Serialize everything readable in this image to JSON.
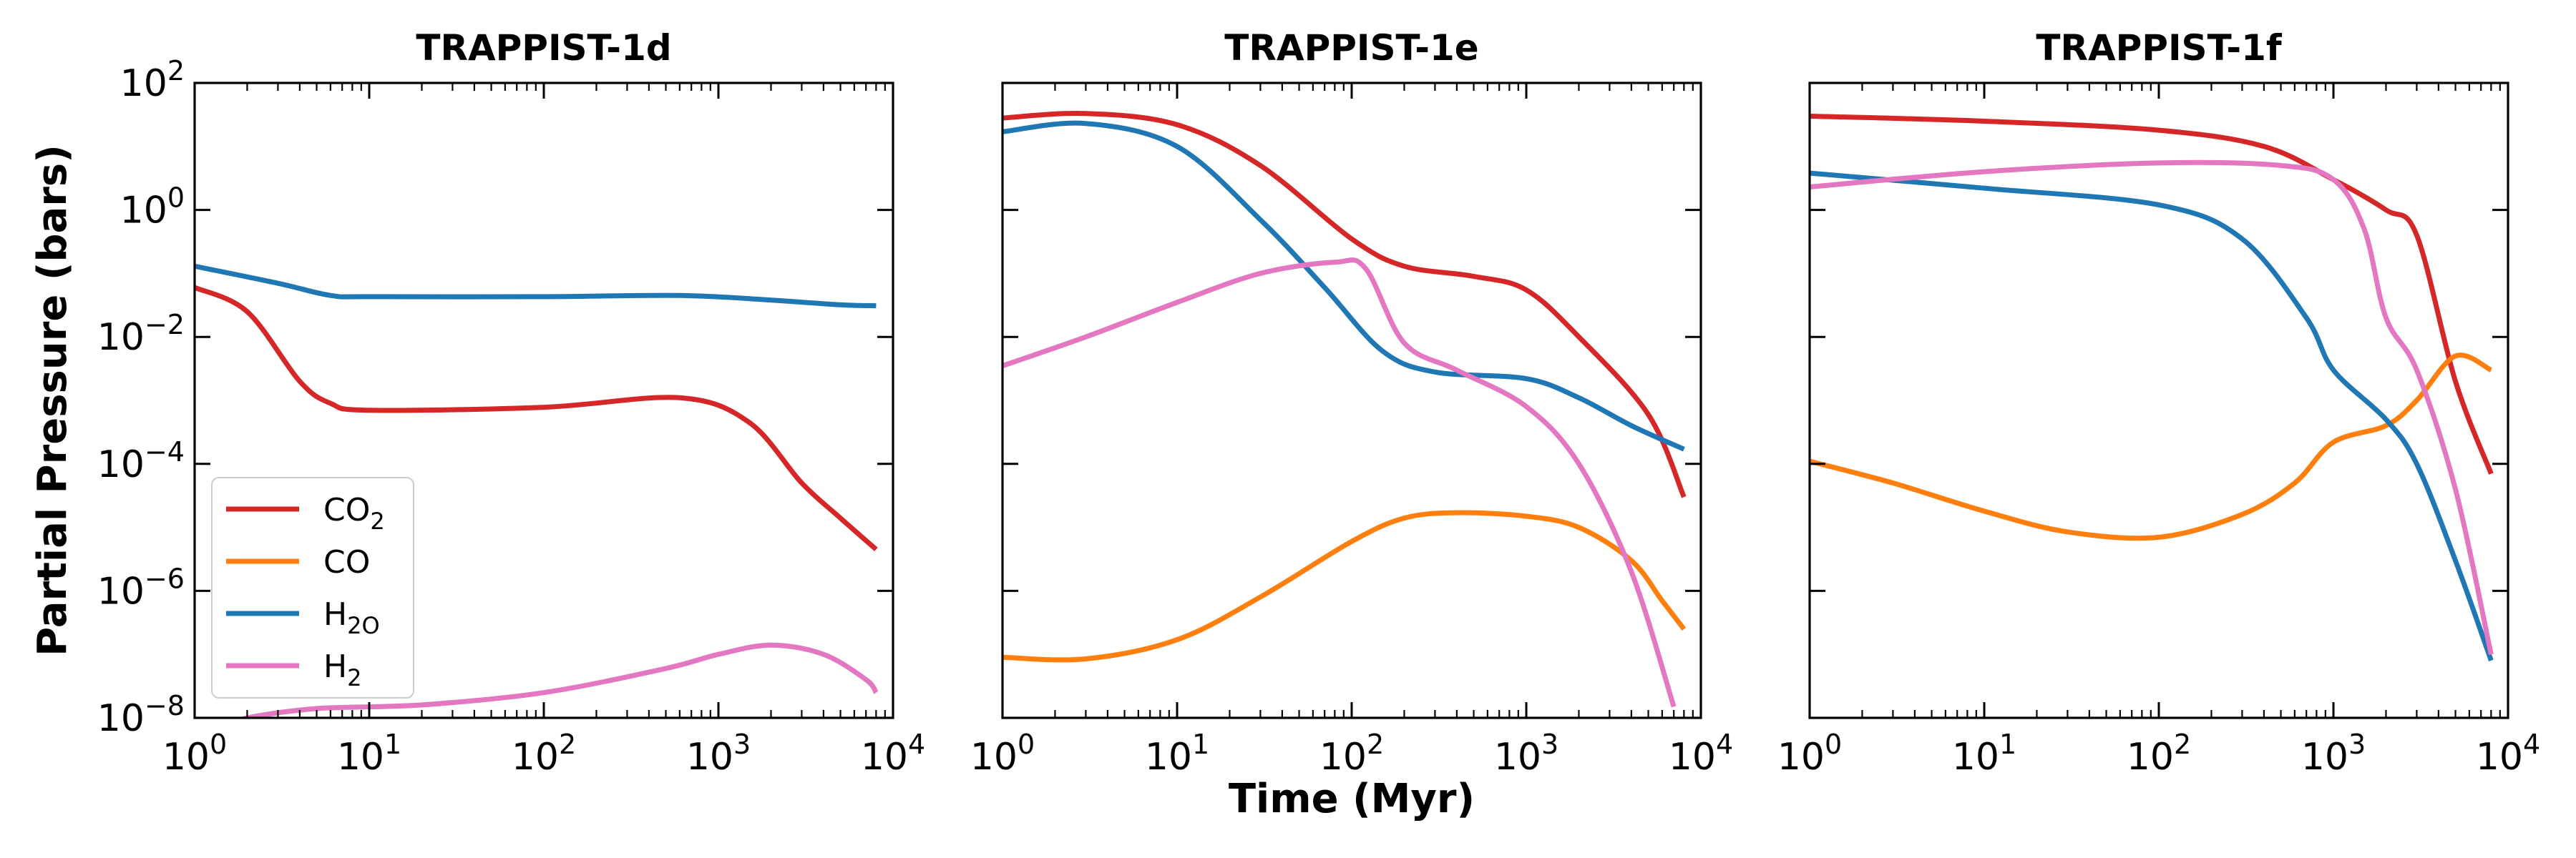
{
  "colors": {
    "CO2": "#d62728",
    "CO": "#ff7f0e",
    "H2O": "#1f77b4",
    "H2": "#e377c2"
  },
  "chart_data": [
    {
      "type": "line",
      "title": "TRAPPIST-1d",
      "xlabel": "",
      "ylabel": "Partial Pressure (bars)",
      "xscale": "log",
      "yscale": "log",
      "xlim": [
        1,
        10000
      ],
      "ylim": [
        1e-08,
        100
      ],
      "x_ticks": [
        "10^0",
        "10^1",
        "10^2",
        "10^3",
        "10^4"
      ],
      "y_ticks": [
        "10^2",
        "10^0",
        "10^-2",
        "10^-4",
        "10^-6",
        "10^-8"
      ],
      "legend": {
        "position": "lower-left",
        "entries": [
          "CO_2",
          "CO",
          "H_2O",
          "H_2"
        ]
      },
      "series": [
        {
          "name": "CO_2",
          "color_key": "CO2",
          "points": [
            [
              1,
              0.06
            ],
            [
              2,
              0.025
            ],
            [
              4,
              0.002
            ],
            [
              6,
              0.0009
            ],
            [
              10,
              0.0007
            ],
            [
              100,
              0.00078
            ],
            [
              600,
              0.0011
            ],
            [
              1500,
              0.00045
            ],
            [
              3000,
              5e-05
            ],
            [
              5000,
              1.4e-05
            ],
            [
              8000,
              4.5e-06
            ]
          ]
        },
        {
          "name": "H_2O",
          "color_key": "H2O",
          "points": [
            [
              1,
              0.13
            ],
            [
              3,
              0.07
            ],
            [
              6,
              0.045
            ],
            [
              10,
              0.043
            ],
            [
              100,
              0.043
            ],
            [
              600,
              0.045
            ],
            [
              2000,
              0.038
            ],
            [
              5000,
              0.032
            ],
            [
              8000,
              0.031
            ]
          ]
        },
        {
          "name": "H_2",
          "color_key": "H2",
          "points": [
            [
              1.8,
              8e-09
            ],
            [
              2,
              1e-08
            ],
            [
              5,
              1.4e-08
            ],
            [
              20,
              1.6e-08
            ],
            [
              100,
              2.5e-08
            ],
            [
              500,
              6e-08
            ],
            [
              1000,
              1e-07
            ],
            [
              2000,
              1.4e-07
            ],
            [
              4000,
              1e-07
            ],
            [
              7000,
              4e-08
            ],
            [
              8000,
              2.5e-08
            ]
          ]
        }
      ]
    },
    {
      "type": "line",
      "title": "TRAPPIST-1e",
      "xlabel": "Time (Myr)",
      "ylabel": "",
      "xscale": "log",
      "yscale": "log",
      "xlim": [
        1,
        10000
      ],
      "ylim": [
        1e-08,
        100
      ],
      "x_ticks": [
        "10^0",
        "10^1",
        "10^2",
        "10^3",
        "10^4"
      ],
      "series": [
        {
          "name": "CO_2",
          "color_key": "CO2",
          "points": [
            [
              1,
              28
            ],
            [
              3,
              33
            ],
            [
              10,
              22
            ],
            [
              30,
              5
            ],
            [
              100,
              0.35
            ],
            [
              200,
              0.13
            ],
            [
              500,
              0.09
            ],
            [
              1000,
              0.055
            ],
            [
              2000,
              0.01
            ],
            [
              5000,
              0.0006
            ],
            [
              8000,
              3e-05
            ]
          ]
        },
        {
          "name": "CO",
          "color_key": "CO",
          "points": [
            [
              1,
              9e-08
            ],
            [
              3,
              8.5e-08
            ],
            [
              10,
              1.7e-07
            ],
            [
              30,
              8e-07
            ],
            [
              100,
              6e-06
            ],
            [
              200,
              1.4e-05
            ],
            [
              400,
              1.7e-05
            ],
            [
              1000,
              1.5e-05
            ],
            [
              2000,
              1e-05
            ],
            [
              4000,
              3e-06
            ],
            [
              6000,
              7e-07
            ],
            [
              8000,
              2.5e-07
            ]
          ]
        },
        {
          "name": "H_2O",
          "color_key": "H2O",
          "points": [
            [
              1,
              17
            ],
            [
              3,
              23
            ],
            [
              10,
              10
            ],
            [
              30,
              0.7
            ],
            [
              70,
              0.06
            ],
            [
              150,
              0.006
            ],
            [
              300,
              0.0028
            ],
            [
              1000,
              0.0022
            ],
            [
              2000,
              0.0011
            ],
            [
              4000,
              0.0004
            ],
            [
              8000,
              0.00017
            ]
          ]
        },
        {
          "name": "H_2",
          "color_key": "H2",
          "points": [
            [
              1,
              0.0035
            ],
            [
              3,
              0.01
            ],
            [
              10,
              0.035
            ],
            [
              30,
              0.1
            ],
            [
              80,
              0.15
            ],
            [
              120,
              0.12
            ],
            [
              200,
              0.008
            ],
            [
              400,
              0.003
            ],
            [
              1000,
              0.0008
            ],
            [
              2000,
              0.0001
            ],
            [
              4000,
              2e-06
            ],
            [
              7000,
              1.5e-08
            ]
          ]
        }
      ]
    },
    {
      "type": "line",
      "title": "TRAPPIST-1f",
      "xlabel": "",
      "ylabel": "",
      "xscale": "log",
      "yscale": "log",
      "xlim": [
        1,
        10000
      ],
      "ylim": [
        1e-08,
        100
      ],
      "x_ticks": [
        "10^0",
        "10^1",
        "10^2",
        "10^3",
        "10^4"
      ],
      "series": [
        {
          "name": "CO_2",
          "color_key": "CO2",
          "points": [
            [
              1,
              30
            ],
            [
              10,
              25
            ],
            [
              100,
              18
            ],
            [
              400,
              10
            ],
            [
              1000,
              3
            ],
            [
              2000,
              1
            ],
            [
              3000,
              0.4
            ],
            [
              5000,
              0.002
            ],
            [
              8000,
              7e-05
            ]
          ]
        },
        {
          "name": "CO",
          "color_key": "CO",
          "points": [
            [
              1,
              0.00011
            ],
            [
              3,
              5e-05
            ],
            [
              10,
              1.8e-05
            ],
            [
              30,
              8.5e-06
            ],
            [
              100,
              7e-06
            ],
            [
              300,
              1.6e-05
            ],
            [
              600,
              5e-05
            ],
            [
              1000,
              0.00022
            ],
            [
              2000,
              0.0004
            ],
            [
              3000,
              0.001
            ],
            [
              5000,
              0.005
            ],
            [
              8000,
              0.003
            ]
          ]
        },
        {
          "name": "H_2O",
          "color_key": "H2O",
          "points": [
            [
              1,
              3.8
            ],
            [
              10,
              2.2
            ],
            [
              100,
              1.2
            ],
            [
              300,
              0.35
            ],
            [
              700,
              0.02
            ],
            [
              1000,
              0.003
            ],
            [
              2000,
              0.0005
            ],
            [
              3000,
              0.0001
            ],
            [
              5000,
              3e-06
            ],
            [
              8000,
              8e-08
            ]
          ]
        },
        {
          "name": "H_2",
          "color_key": "H2",
          "points": [
            [
              1,
              2.3
            ],
            [
              10,
              4
            ],
            [
              100,
              5.5
            ],
            [
              500,
              5
            ],
            [
              1000,
              3
            ],
            [
              1500,
              0.5
            ],
            [
              2000,
              0.02
            ],
            [
              3000,
              0.003
            ],
            [
              5000,
              4e-05
            ],
            [
              8000,
              1e-07
            ]
          ]
        }
      ]
    }
  ]
}
